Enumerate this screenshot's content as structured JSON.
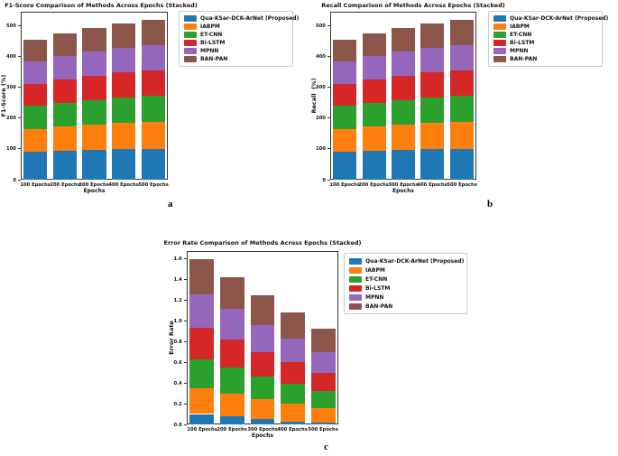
{
  "figure": {
    "background": "#ffffff",
    "axis_color": "#333333",
    "methods": [
      "Qua-KSar-DCK-ArNet (Proposed)",
      "IABPM",
      "ET-CNN",
      "Bi-LSTM",
      "MPNN",
      "BAN-PAN"
    ],
    "method_colors": [
      "#1f77b4",
      "#ff7f0e",
      "#2ca02c",
      "#d62728",
      "#9467bd",
      "#8c564b"
    ]
  },
  "chart_data": [
    {
      "type": "bar",
      "stacked": true,
      "title": "F1-Score Comparison of Methods Across Epochs (Stacked)",
      "xlabel": "Epochs",
      "ylabel": "F1-Score (%)",
      "panel_label": "a",
      "categories": [
        "100 Epochs",
        "200 Epochs",
        "300 Epochs",
        "400 Epochs",
        "500 Epochs"
      ],
      "series": [
        {
          "name": "Qua-KSar-DCK-ArNet (Proposed)",
          "color": "#1f77b4",
          "values": [
            90,
            93,
            96,
            98,
            100
          ]
        },
        {
          "name": "IABPM",
          "color": "#ff7f0e",
          "values": [
            75,
            79,
            82,
            85,
            87
          ]
        },
        {
          "name": "ET-CNN",
          "color": "#2ca02c",
          "values": [
            74,
            78,
            80,
            83,
            85
          ]
        },
        {
          "name": "Bi-LSTM",
          "color": "#d62728",
          "values": [
            72,
            76,
            79,
            81,
            83
          ]
        },
        {
          "name": "MPNN",
          "color": "#9467bd",
          "values": [
            72,
            74,
            77,
            79,
            81
          ]
        },
        {
          "name": "BAN-PAN",
          "color": "#8c564b",
          "values": [
            71,
            74,
            77,
            79,
            82
          ]
        }
      ],
      "stack_totals": [
        454,
        474,
        491,
        505,
        518
      ],
      "ylim": [
        0,
        544
      ],
      "yticks": [
        {
          "value": 0,
          "label": "0"
        },
        {
          "value": 100,
          "label": "100"
        },
        {
          "value": 200,
          "label": "200"
        },
        {
          "value": 300,
          "label": "300"
        },
        {
          "value": 400,
          "label": "400"
        },
        {
          "value": 500,
          "label": "500"
        }
      ],
      "grid": false,
      "legend_position": "outside upper right"
    },
    {
      "type": "bar",
      "stacked": true,
      "title": "Recall Comparison of Methods Across Epochs (Stacked)",
      "xlabel": "Epochs",
      "ylabel": "Recall  (%)",
      "panel_label": "b",
      "categories": [
        "100 Epochs",
        "200 Epochs",
        "300 Epochs",
        "400 Epochs",
        "500 Epochs"
      ],
      "series": [
        {
          "name": "Qua-KSar-DCK-ArNet (Proposed)",
          "color": "#1f77b4",
          "values": [
            90,
            93,
            96,
            98,
            100
          ]
        },
        {
          "name": "IABPM",
          "color": "#ff7f0e",
          "values": [
            75,
            79,
            82,
            85,
            87
          ]
        },
        {
          "name": "ET-CNN",
          "color": "#2ca02c",
          "values": [
            74,
            78,
            80,
            83,
            85
          ]
        },
        {
          "name": "Bi-LSTM",
          "color": "#d62728",
          "values": [
            72,
            76,
            79,
            81,
            83
          ]
        },
        {
          "name": "MPNN",
          "color": "#9467bd",
          "values": [
            72,
            74,
            77,
            79,
            81
          ]
        },
        {
          "name": "BAN-PAN",
          "color": "#8c564b",
          "values": [
            71,
            74,
            77,
            79,
            82
          ]
        }
      ],
      "stack_totals": [
        454,
        474,
        491,
        505,
        518
      ],
      "ylim": [
        0,
        544
      ],
      "yticks": [
        {
          "value": 0,
          "label": "0"
        },
        {
          "value": 100,
          "label": "100"
        },
        {
          "value": 200,
          "label": "200"
        },
        {
          "value": 300,
          "label": "300"
        },
        {
          "value": 400,
          "label": "400"
        },
        {
          "value": 500,
          "label": "500"
        }
      ],
      "grid": false,
      "legend_position": "outside upper right"
    },
    {
      "type": "bar",
      "stacked": true,
      "title": "Error Rate Comparison of Methods Across Epochs (Stacked)",
      "xlabel": "Epochs",
      "ylabel": "Error Rate",
      "panel_label": "c",
      "categories": [
        "100 Epochs",
        "200 Epochs",
        "300 Epochs",
        "400 Epochs",
        "500 Epochs"
      ],
      "series": [
        {
          "name": "Qua-KSar-DCK-ArNet (Proposed)",
          "color": "#1f77b4",
          "values": [
            0.1,
            0.08,
            0.05,
            0.03,
            0.02
          ]
        },
        {
          "name": "IABPM",
          "color": "#ff7f0e",
          "values": [
            0.25,
            0.22,
            0.19,
            0.17,
            0.14
          ]
        },
        {
          "name": "ET-CNN",
          "color": "#2ca02c",
          "values": [
            0.28,
            0.25,
            0.22,
            0.19,
            0.16
          ]
        },
        {
          "name": "Bi-LSTM",
          "color": "#d62728",
          "values": [
            0.3,
            0.27,
            0.24,
            0.21,
            0.18
          ]
        },
        {
          "name": "MPNN",
          "color": "#9467bd",
          "values": [
            0.32,
            0.29,
            0.26,
            0.23,
            0.2
          ]
        },
        {
          "name": "BAN-PAN",
          "color": "#8c564b",
          "values": [
            0.34,
            0.31,
            0.28,
            0.25,
            0.22
          ]
        }
      ],
      "stack_totals": [
        1.59,
        1.42,
        1.24,
        1.08,
        0.92
      ],
      "ylim": [
        0,
        1.67
      ],
      "yticks": [
        {
          "value": 0.0,
          "label": "0.0"
        },
        {
          "value": 0.2,
          "label": "0.2"
        },
        {
          "value": 0.4,
          "label": "0.4"
        },
        {
          "value": 0.6,
          "label": "0.6"
        },
        {
          "value": 0.8,
          "label": "0.8"
        },
        {
          "value": 1.0,
          "label": "1.0"
        },
        {
          "value": 1.2,
          "label": "1.2"
        },
        {
          "value": 1.4,
          "label": "1.4"
        },
        {
          "value": 1.6,
          "label": "1.6"
        }
      ],
      "grid": false,
      "legend_position": "outside upper right"
    }
  ]
}
